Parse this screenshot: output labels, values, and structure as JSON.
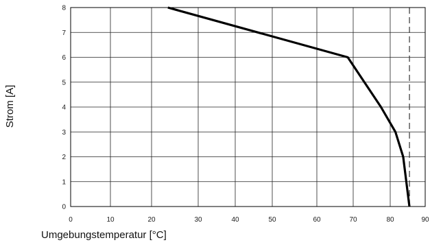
{
  "chart_data": {
    "type": "line",
    "xlabel": "Umgebungstemperatur [°C]",
    "ylabel": "Strom [A]",
    "xlim": [
      0,
      90
    ],
    "ylim": [
      0,
      8
    ],
    "x_ticks": [
      0,
      10,
      20,
      30,
      40,
      50,
      60,
      70,
      80,
      90
    ],
    "y_ticks": [
      0,
      1,
      2,
      3,
      4,
      5,
      6,
      7,
      8
    ],
    "grid": true,
    "series": [
      {
        "x": [
          23.5,
          68.5,
          77.5,
          81.5,
          83.7,
          85.5
        ],
        "y": [
          8,
          6,
          4,
          3,
          2,
          0
        ],
        "color": "#000000",
        "style": "solid"
      }
    ],
    "reference_lines": [
      {
        "orientation": "vertical",
        "x": 85.5,
        "style": "dashed",
        "color": "#333333"
      }
    ]
  }
}
